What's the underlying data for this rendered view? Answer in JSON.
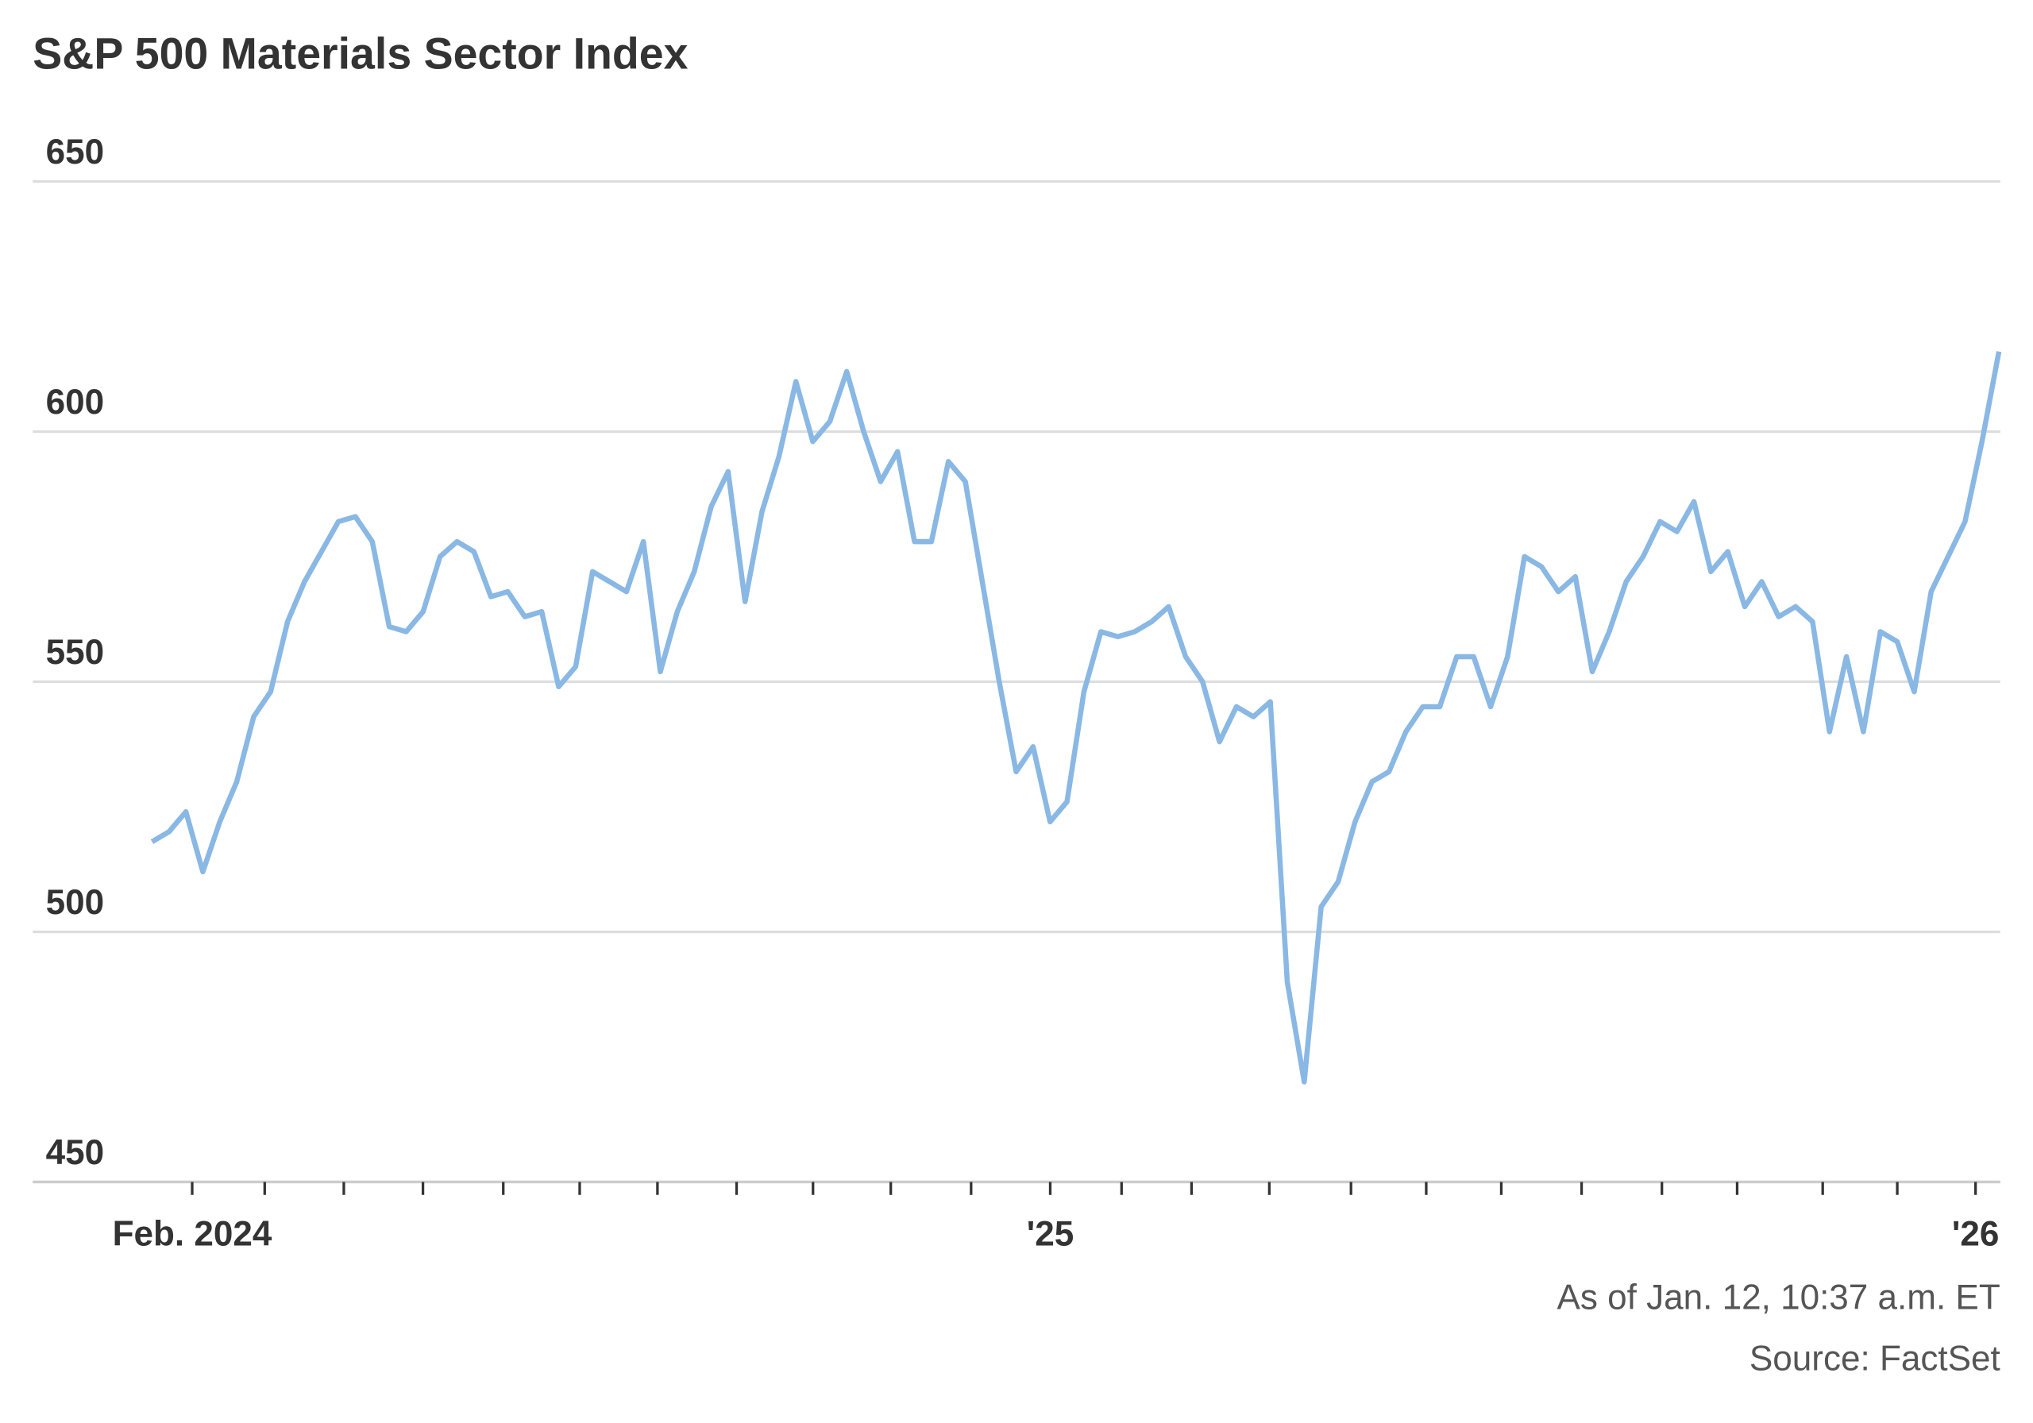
{
  "chart_data": {
    "type": "line",
    "title": "S&P 500 Materials Sector Index",
    "notes": [
      "As of Jan. 12, 10:37 a.m. ET",
      "Source: FactSet"
    ],
    "color": "#8ab8e4",
    "values": [
      518,
      520,
      524,
      512,
      522,
      530,
      543,
      548,
      562,
      570,
      576,
      582,
      583,
      578,
      561,
      560,
      564,
      575,
      578,
      576,
      567,
      568,
      563,
      564,
      549,
      553,
      572,
      570,
      568,
      578,
      552,
      564,
      572,
      585,
      592,
      566,
      584,
      595,
      610,
      598,
      602,
      612,
      600,
      590,
      596,
      578,
      578,
      594,
      590,
      570,
      550,
      532,
      537,
      522,
      526,
      548,
      560,
      559,
      560,
      562,
      565,
      555,
      550,
      538,
      545,
      543,
      546,
      490,
      470,
      505,
      510,
      522,
      530,
      532,
      540,
      545,
      545,
      555,
      555,
      545,
      555,
      575,
      573,
      568,
      571,
      552,
      560,
      570,
      575,
      582,
      580,
      586,
      572,
      576,
      565,
      570,
      563,
      565,
      562,
      540,
      555,
      540,
      560,
      558,
      548,
      568,
      575,
      582,
      598,
      616
    ],
    "xlim": [
      0,
      109
    ],
    "xticks": [
      {
        "value": 2.37,
        "label": "Feb. 2024"
      },
      {
        "value": 53.01,
        "label": "'25"
      },
      {
        "value": 107.62,
        "label": "'26"
      }
    ],
    "xminor_ticks": [
      6.65,
      11.32,
      15.99,
      20.73,
      25.24,
      29.83,
      34.5,
      39.01,
      43.6,
      48.34,
      57.22,
      61.35,
      65.94,
      70.76,
      75.2,
      79.63,
      84.37,
      89.11,
      93.55,
      98.6,
      103.0
    ],
    "ylim": [
      450,
      650
    ],
    "yticks": [
      450,
      500,
      550,
      600,
      650
    ],
    "grid": true
  }
}
